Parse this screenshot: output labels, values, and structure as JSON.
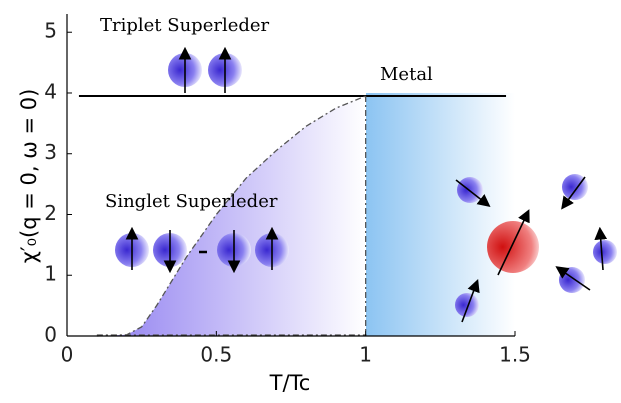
{
  "chart_data": {
    "type": "line",
    "x_label": "T/Tc",
    "y_label": "χ′₀(q = 0, ω = 0)",
    "annotations": [
      "Triplet Superleder",
      "Metal",
      "Singlet Superleder"
    ],
    "xlim": [
      0,
      1.5
    ],
    "xticks": [
      0,
      0.5,
      1,
      1.5
    ],
    "ylim": [
      0,
      5.3
    ],
    "yticks": [
      0,
      1,
      2,
      3,
      4,
      5
    ],
    "series": [
      {
        "color": "#000000",
        "style": "solid",
        "x": [
          0.04,
          1.47
        ],
        "values": [
          3.95,
          3.95
        ]
      },
      {
        "color": "#555555",
        "style": "dashdot",
        "fill": "#9d8cf0",
        "x": [
          0.1,
          0.2,
          0.25,
          0.3,
          0.4,
          0.5,
          0.6,
          0.7,
          0.8,
          0.9,
          1.0
        ],
        "values": [
          0,
          0.02,
          0.15,
          0.5,
          1.3,
          2.0,
          2.6,
          3.05,
          3.45,
          3.75,
          3.95
        ]
      }
    ]
  }
}
